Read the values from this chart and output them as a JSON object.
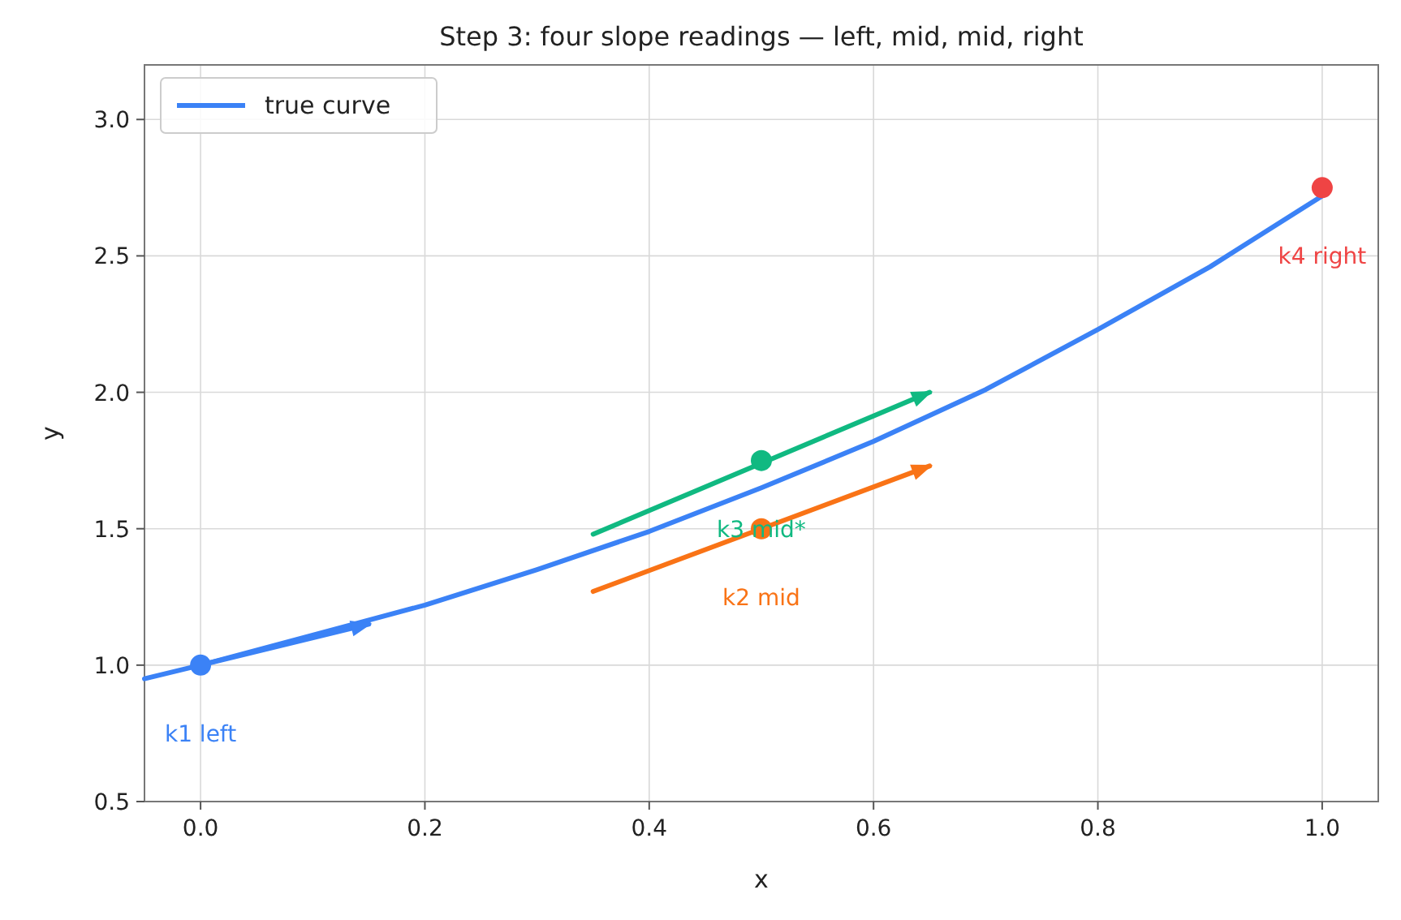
{
  "chart_data": {
    "type": "line",
    "title": "Step 3: four slope readings — left, mid, mid, right",
    "xlabel": "x",
    "ylabel": "y",
    "xlim": [
      -0.05,
      1.05
    ],
    "ylim": [
      0.5,
      3.2
    ],
    "xticks": [
      {
        "value": 0,
        "label": "0.0"
      },
      {
        "value": 0.2,
        "label": "0.2"
      },
      {
        "value": 0.4,
        "label": "0.4"
      },
      {
        "value": 0.6,
        "label": "0.6"
      },
      {
        "value": 0.8,
        "label": "0.8"
      },
      {
        "value": 1,
        "label": "1.0"
      }
    ],
    "yticks": [
      {
        "value": 0.5,
        "label": "0.5"
      },
      {
        "value": 1,
        "label": "1.0"
      },
      {
        "value": 1.5,
        "label": "1.5"
      },
      {
        "value": 2,
        "label": "2.0"
      },
      {
        "value": 2.5,
        "label": "2.5"
      },
      {
        "value": 3,
        "label": "3.0"
      }
    ],
    "grid": true,
    "legend": "top left",
    "series": [
      {
        "name": "true curve",
        "color": "#3b82f6",
        "x": [
          -0.05,
          0,
          0.1,
          0.2,
          0.3,
          0.4,
          0.5,
          0.6,
          0.7,
          0.8,
          0.9,
          1.0
        ],
        "values": [
          0.95,
          1.0,
          1.11,
          1.22,
          1.35,
          1.49,
          1.65,
          1.82,
          2.01,
          2.23,
          2.46,
          2.72
        ]
      },
      {
        "color": "#3b82f6",
        "x": [
          0,
          0.15
        ],
        "values": [
          1.0,
          1.15
        ]
      },
      {
        "color": "#f97316",
        "x": [
          0.35,
          0.65
        ],
        "values": [
          1.27,
          1.73
        ]
      },
      {
        "color": "#10b981",
        "x": [
          0.35,
          0.65
        ],
        "values": [
          1.48,
          2.0
        ]
      },
      {
        "type": "scatter",
        "x": [
          0,
          0.5,
          0.5,
          1.0
        ],
        "values": [
          1.0,
          1.5,
          1.75,
          2.75
        ],
        "colors": [
          "#3b82f6",
          "#f97316",
          "#10b981",
          "#ef4444"
        ]
      }
    ],
    "annotations": [
      {
        "text": "k1 left",
        "x": 0.0,
        "y": 1.0
      },
      {
        "text": "k2 mid",
        "x": 0.5,
        "y": 1.5
      },
      {
        "text": "k3 mid*",
        "x": 0.5,
        "y": 1.75
      },
      {
        "text": "k4 right",
        "x": 1.0,
        "y": 2.75
      }
    ]
  }
}
